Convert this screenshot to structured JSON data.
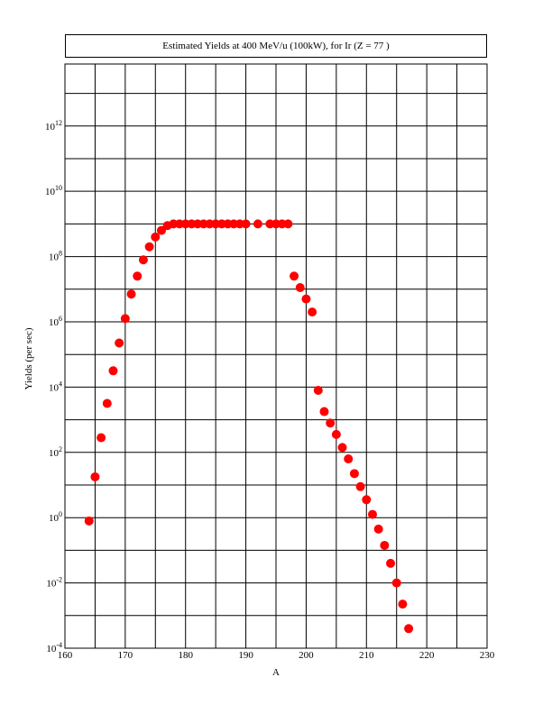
{
  "chart_data": {
    "type": "scatter",
    "title": "Estimated Yields at 400 MeV/u (100kW), for Ir (Z = 77 )",
    "xlabel": "A",
    "ylabel": "Yields (per sec)",
    "xlim": [
      160,
      230
    ],
    "ylim_log10": [
      -4,
      13.9
    ],
    "y_scale": "log",
    "grid": true,
    "marker_color": "#ff0000",
    "x_ticks": [
      {
        "value": 160,
        "label": "160"
      },
      {
        "value": 170,
        "label": "170"
      },
      {
        "value": 180,
        "label": "180"
      },
      {
        "value": 190,
        "label": "190"
      },
      {
        "value": 200,
        "label": "200"
      },
      {
        "value": 210,
        "label": "210"
      },
      {
        "value": 220,
        "label": "220"
      },
      {
        "value": 230,
        "label": "230"
      }
    ],
    "y_ticks": [
      {
        "exp": -4,
        "base": "10",
        "sup": "-4"
      },
      {
        "exp": -2,
        "base": "10",
        "sup": "-2"
      },
      {
        "exp": 0,
        "base": "10",
        "sup": "0"
      },
      {
        "exp": 2,
        "base": "10",
        "sup": "2"
      },
      {
        "exp": 4,
        "base": "10",
        "sup": "4"
      },
      {
        "exp": 6,
        "base": "10",
        "sup": "6"
      },
      {
        "exp": 8,
        "base": "10",
        "sup": "8"
      },
      {
        "exp": 10,
        "base": "10",
        "sup": "10"
      },
      {
        "exp": 12,
        "base": "10",
        "sup": "12"
      }
    ],
    "points_log10": [
      [
        164,
        -0.1
      ],
      [
        165,
        1.25
      ],
      [
        166,
        2.45
      ],
      [
        167,
        3.5
      ],
      [
        168,
        4.5
      ],
      [
        169,
        5.35
      ],
      [
        170,
        6.1
      ],
      [
        171,
        6.85
      ],
      [
        172,
        7.4
      ],
      [
        173,
        7.9
      ],
      [
        174,
        8.3
      ],
      [
        175,
        8.6
      ],
      [
        176,
        8.8
      ],
      [
        177,
        8.95
      ],
      [
        178,
        9.0
      ],
      [
        179,
        9.0
      ],
      [
        180,
        9.0
      ],
      [
        181,
        9.0
      ],
      [
        182,
        9.0
      ],
      [
        183,
        9.0
      ],
      [
        184,
        9.0
      ],
      [
        185,
        9.0
      ],
      [
        186,
        9.0
      ],
      [
        187,
        9.0
      ],
      [
        188,
        9.0
      ],
      [
        189,
        9.0
      ],
      [
        190,
        9.0
      ],
      [
        192,
        9.0
      ],
      [
        194,
        9.0
      ],
      [
        195,
        9.0
      ],
      [
        196,
        9.0
      ],
      [
        197,
        9.0
      ],
      [
        198,
        7.4
      ],
      [
        199,
        7.05
      ],
      [
        200,
        6.7
      ],
      [
        201,
        6.3
      ],
      [
        202,
        3.9
      ],
      [
        203,
        3.25
      ],
      [
        204,
        2.9
      ],
      [
        205,
        2.55
      ],
      [
        206,
        2.15
      ],
      [
        207,
        1.8
      ],
      [
        208,
        1.35
      ],
      [
        209,
        0.95
      ],
      [
        210,
        0.55
      ],
      [
        211,
        0.1
      ],
      [
        212,
        -0.35
      ],
      [
        213,
        -0.85
      ],
      [
        214,
        -1.4
      ],
      [
        215,
        -2.0
      ],
      [
        216,
        -2.65
      ],
      [
        217,
        -3.4
      ]
    ]
  }
}
